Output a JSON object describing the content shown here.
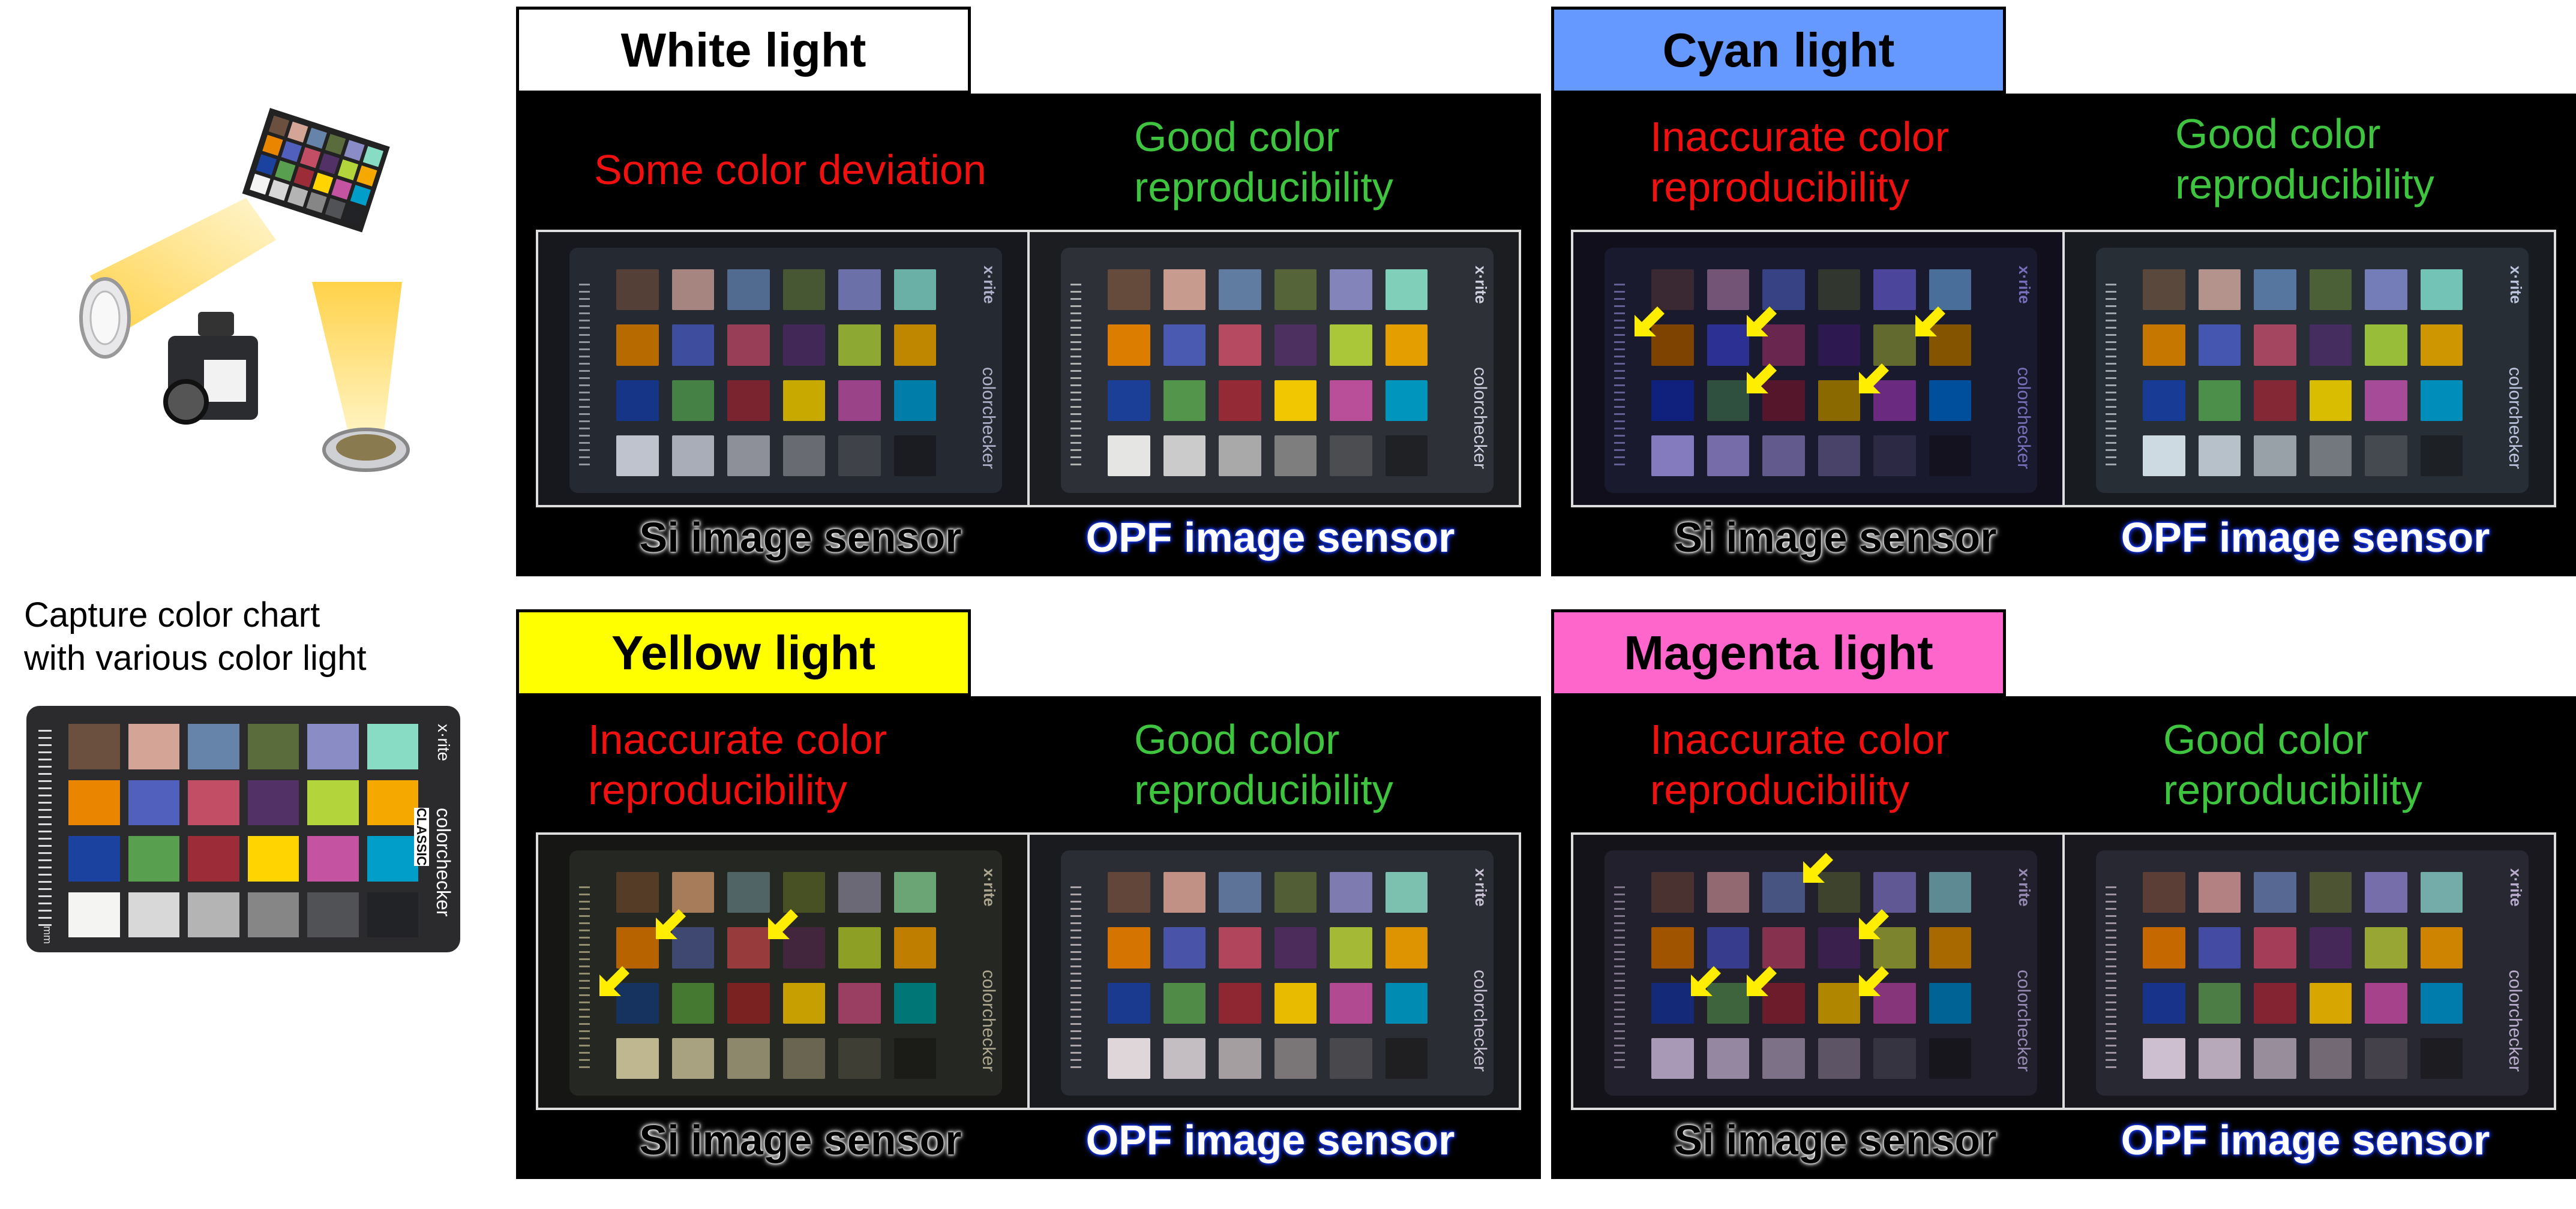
{
  "caption": {
    "line1": "Capture color chart",
    "line2": "with various color light"
  },
  "reference_chart": {
    "brand": "x·rite",
    "product": "colorchecker",
    "edition": "CLASSIC",
    "unit": "mm"
  },
  "chart_text": {
    "brand": "x·rite",
    "product": "colorchecker"
  },
  "palette": [
    "#6b5040",
    "#d4a596",
    "#6684aa",
    "#5a6b3c",
    "#8a8cc6",
    "#88dcc4",
    "#ea8500",
    "#5060bc",
    "#c24e66",
    "#523266",
    "#b4d43c",
    "#f4a800",
    "#1c42a0",
    "#58a050",
    "#9c2c38",
    "#ffd400",
    "#c454a2",
    "#009ec8",
    "#f4f4f2",
    "#d8d8d8",
    "#b4b4b4",
    "#868686",
    "#505256",
    "#222326"
  ],
  "panels": [
    {
      "id": "white",
      "title": "White light",
      "title_bg": "#ffffff",
      "si_comment": "Some color deviation",
      "opf_comment": "Good color reproducibility",
      "si_label": "Si image sensor",
      "opf_label": "OPF image sensor",
      "si_tint": "#c8ccd8",
      "opf_tint": "#f0f0f0",
      "arrows": []
    },
    {
      "id": "cyan",
      "title": "Cyan light",
      "title_bg": "#6699ff",
      "si_comment": "Inaccurate color reproducibility",
      "opf_comment": "Good color reproducibility",
      "si_label": "Si image sensor",
      "opf_label": "OPF image sensor",
      "si_tint": "#8a80c8",
      "opf_tint": "#d8e4ee",
      "arrows": [
        [
          1,
          0
        ],
        [
          1,
          2
        ],
        [
          1,
          5
        ],
        [
          2,
          2
        ],
        [
          2,
          4
        ]
      ]
    },
    {
      "id": "yellow",
      "title": "Yellow light",
      "title_bg": "#ffff00",
      "si_comment": "Inaccurate color reproducibility",
      "opf_comment": "Good color reproducibility",
      "si_label": "Si image sensor",
      "opf_label": "OPF image sensor",
      "si_tint": "#c8c098",
      "opf_tint": "#e8e0e4",
      "arrows": [
        [
          1,
          1
        ],
        [
          1,
          3
        ],
        [
          2,
          0
        ]
      ]
    },
    {
      "id": "magenta",
      "title": "Magenta light",
      "title_bg": "#ff66cc",
      "si_comment": "Inaccurate color reproducibility",
      "opf_comment": "Good color reproducibility",
      "si_label": "Si image sensor",
      "opf_label": "OPF image sensor",
      "si_tint": "#b0a0c0",
      "opf_tint": "#d8c8dc",
      "arrows": [
        [
          0,
          3
        ],
        [
          1,
          4
        ],
        [
          2,
          1
        ],
        [
          2,
          2
        ],
        [
          2,
          4
        ]
      ]
    }
  ],
  "colors": {
    "bad": "#f01010",
    "good": "#3ec43e",
    "arrow": "#ffee00"
  }
}
